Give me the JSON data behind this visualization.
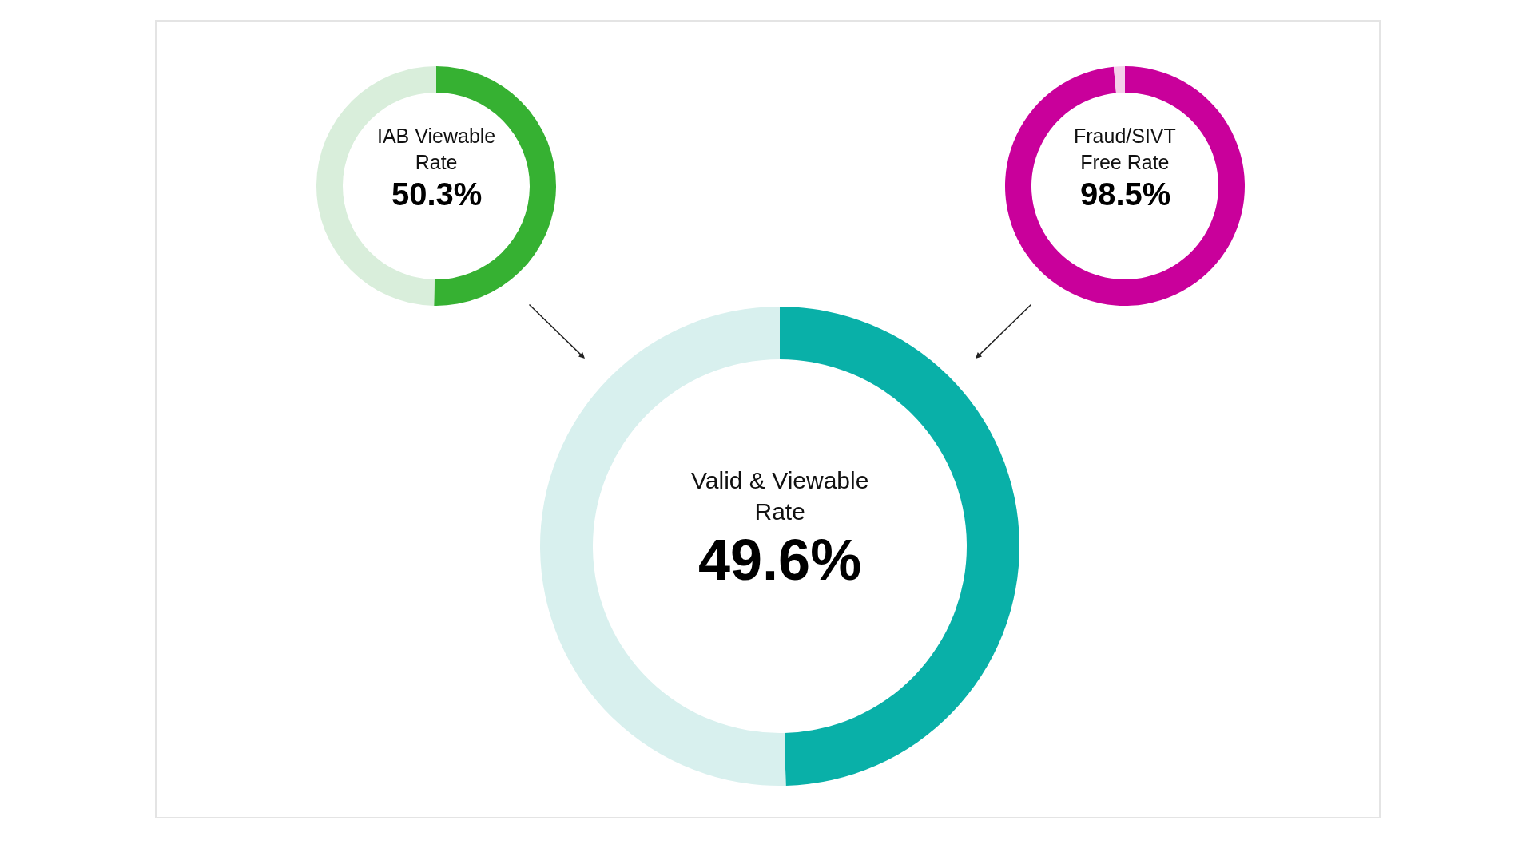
{
  "chart_data": [
    {
      "type": "donut",
      "title": "IAB Viewable Rate",
      "categories": [
        null,
        null
      ],
      "values": [
        50.3,
        49.7
      ],
      "colors": [
        "#36b132",
        "#d9eedb"
      ],
      "value_labels": [
        "50.3%",
        null
      ]
    },
    {
      "type": "donut",
      "title": "Fraud/SIVT Free Rate",
      "categories": [
        null,
        null
      ],
      "values": [
        98.5,
        1.5
      ],
      "colors": [
        "#c9009b",
        "#f5d0ea"
      ],
      "value_labels": [
        "98.5%",
        null
      ]
    },
    {
      "type": "donut",
      "title": "Valid & Viewable Rate",
      "categories": [
        null,
        null
      ],
      "values": [
        49.6,
        50.4
      ],
      "colors": [
        "#09b0a8",
        "#d8f0ee"
      ],
      "value_labels": [
        "49.6%",
        null
      ]
    }
  ]
}
